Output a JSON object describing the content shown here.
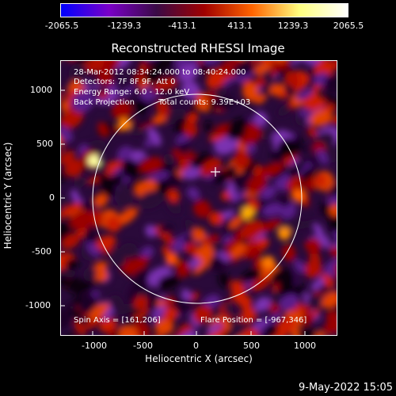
{
  "colorbar": {
    "labels": [
      "-2065.5",
      "-1239.3",
      "-413.1",
      "413.1",
      "1239.3",
      "2065.5"
    ],
    "colors": [
      "#0000ff",
      "#7a00c8",
      "#3a0a46",
      "#a00000",
      "#ff6400",
      "#ffff80",
      "#ffffff"
    ]
  },
  "title": "Reconstructed RHESSI Image",
  "annotations": {
    "time_range": "28-Mar-2012 08:34:24.000 to 08:40:24.000",
    "detectors": "Detectors: 7F 8F 9F, Att 0",
    "energy": "Energy Range: 6.0 - 12.0 keV",
    "method": "Back Projection",
    "counts": "Total counts: 9.39E+03",
    "spin_axis": "Spin Axis = [161,206]",
    "flare_position": "Flare Position = [-967,346]"
  },
  "axes": {
    "xlabel": "Heliocentric X (arcsec)",
    "ylabel": "Heliocentric Y (arcsec)",
    "xticks": [
      "-1000",
      "-500",
      "0",
      "500",
      "1000"
    ],
    "yticks": [
      "1000",
      "500",
      "0",
      "-500",
      "-1000"
    ]
  },
  "timestamp": "9-May-2022 15:05"
}
